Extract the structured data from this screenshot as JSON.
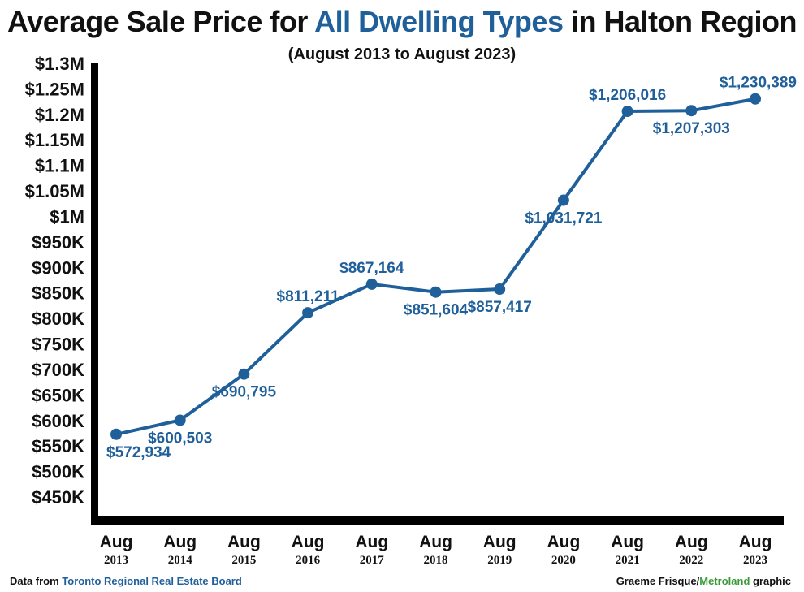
{
  "title": {
    "before": "Average Sale Price for ",
    "highlight": "All Dwelling Types",
    "after": " in Halton Region"
  },
  "subtitle": "(August 2013 to August 2023)",
  "footer": {
    "left_prefix": "Data from ",
    "left_source": "Toronto Regional Real Estate Board",
    "right_author": "Graeme Frisque/",
    "right_brand": "Metroland",
    "right_suffix": " graphic"
  },
  "colors": {
    "line": "#1f5f9a",
    "axis": "#000000",
    "label": "#1f5f9a",
    "brand_green": "#3a9a3a"
  },
  "chart_data": {
    "type": "line",
    "title": "Average Sale Price for All Dwelling Types in Halton Region",
    "subtitle": "(August 2013 to August 2023)",
    "xlabel": "",
    "ylabel": "",
    "ylim": [
      450000,
      1300000
    ],
    "grid": false,
    "y_ticks": [
      {
        "value": 1300000,
        "label": "$1.3M"
      },
      {
        "value": 1250000,
        "label": "$1.25M"
      },
      {
        "value": 1200000,
        "label": "$1.2M"
      },
      {
        "value": 1150000,
        "label": "$1.15M"
      },
      {
        "value": 1100000,
        "label": "$1.1M"
      },
      {
        "value": 1050000,
        "label": "$1.05M"
      },
      {
        "value": 1000000,
        "label": "$1M"
      },
      {
        "value": 950000,
        "label": "$950K"
      },
      {
        "value": 900000,
        "label": "$900K"
      },
      {
        "value": 850000,
        "label": "$850K"
      },
      {
        "value": 800000,
        "label": "$800K"
      },
      {
        "value": 750000,
        "label": "$750K"
      },
      {
        "value": 700000,
        "label": "$700K"
      },
      {
        "value": 650000,
        "label": "$650K"
      },
      {
        "value": 600000,
        "label": "$600K"
      },
      {
        "value": 550000,
        "label": "$550K"
      },
      {
        "value": 500000,
        "label": "$500K"
      },
      {
        "value": 450000,
        "label": "$450K"
      }
    ],
    "categories": [
      {
        "month": "Aug",
        "year": "2013"
      },
      {
        "month": "Aug",
        "year": "2014"
      },
      {
        "month": "Aug",
        "year": "2015"
      },
      {
        "month": "Aug",
        "year": "2016"
      },
      {
        "month": "Aug",
        "year": "2017"
      },
      {
        "month": "Aug",
        "year": "2018"
      },
      {
        "month": "Aug",
        "year": "2019"
      },
      {
        "month": "Aug",
        "year": "2020"
      },
      {
        "month": "Aug",
        "year": "2021"
      },
      {
        "month": "Aug",
        "year": "2022"
      },
      {
        "month": "Aug",
        "year": "2023"
      }
    ],
    "series": [
      {
        "values": [
          572934,
          600503,
          690795,
          811211,
          867164,
          851604,
          857417,
          1031721,
          1206016,
          1207303,
          1230389
        ],
        "labels": [
          "$572,934",
          "$600,503",
          "$690,795",
          "$811,211",
          "$867,164",
          "$851,604",
          "$857,417",
          "$1,031,721",
          "$1,206,016",
          "$1,207,303",
          "$1,230,389"
        ],
        "label_positions": [
          "below",
          "below",
          "below",
          "above",
          "above",
          "below",
          "below",
          "below",
          "above",
          "below",
          "above"
        ]
      }
    ]
  }
}
